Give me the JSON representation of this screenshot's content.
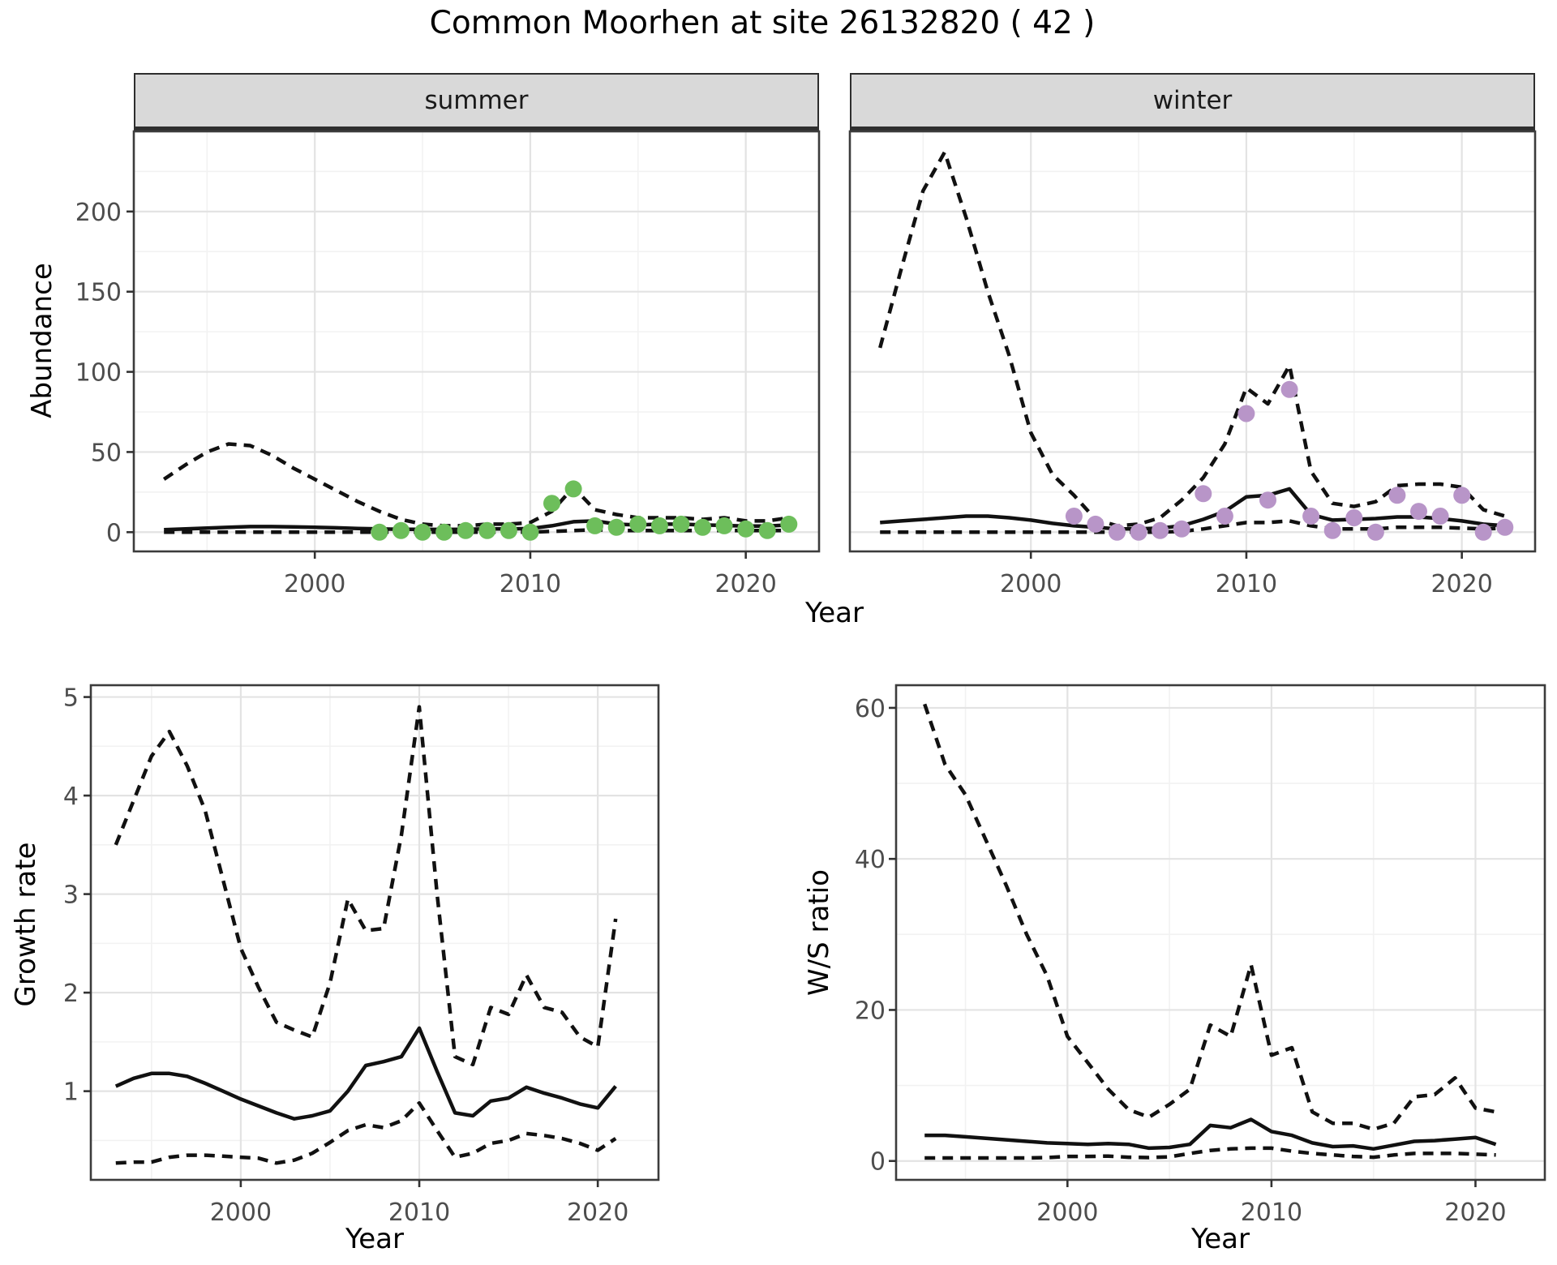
{
  "title": "Common Moorhen at site 26132820 ( 42 )",
  "styles": {
    "line_color": "#111111",
    "strip_fill": "#d9d9d9",
    "grid_major": "#e3e3e3",
    "grid_minor": "#f2f2f2",
    "panel_border": "#3c3c3c",
    "tick_color": "#333333",
    "summer_point_color": "#6dbe5b",
    "winter_point_color": "#b895c8"
  },
  "chart_data": [
    {
      "id": "abundance-summer",
      "type": "line",
      "facet": "summer",
      "xlabel": "Year",
      "ylabel": "Abundance",
      "x_ticks": [
        2000,
        2010,
        2020
      ],
      "y_ticks": [
        0,
        50,
        100,
        150,
        200
      ],
      "xlim": [
        1991.6,
        2023.4
      ],
      "ylim": [
        -12,
        250
      ],
      "grid": true,
      "legend": "none",
      "series": [
        {
          "name": "upper-95ci",
          "style": "dashed",
          "x": [
            1993,
            1994,
            1995,
            1996,
            1997,
            1998,
            1999,
            2000,
            2001,
            2002,
            2003,
            2004,
            2005,
            2006,
            2007,
            2008,
            2009,
            2010,
            2011,
            2012,
            2013,
            2014,
            2015,
            2016,
            2017,
            2018,
            2019,
            2020,
            2021,
            2022
          ],
          "y": [
            33,
            42,
            50,
            55,
            54,
            48,
            40,
            33,
            26,
            19,
            13,
            8,
            5,
            4,
            4,
            5,
            5,
            6,
            13,
            28,
            14,
            11,
            9,
            9,
            9,
            8,
            9,
            7,
            7,
            9
          ]
        },
        {
          "name": "modelled-mean",
          "style": "solid",
          "x": [
            1993,
            1994,
            1995,
            1996,
            1997,
            1998,
            1999,
            2000,
            2001,
            2002,
            2003,
            2004,
            2005,
            2006,
            2007,
            2008,
            2009,
            2010,
            2011,
            2012,
            2013,
            2014,
            2015,
            2016,
            2017,
            2018,
            2019,
            2020,
            2021,
            2022
          ],
          "y": [
            1.5,
            2,
            2.5,
            3,
            3.5,
            3.5,
            3.3,
            3,
            2.7,
            2.3,
            2,
            1.8,
            1.7,
            1.7,
            1.8,
            2,
            2,
            2.2,
            4,
            6.5,
            7,
            5,
            4.5,
            5,
            5,
            4.5,
            4.2,
            3.8,
            3.8,
            4.5
          ]
        },
        {
          "name": "lower-95ci",
          "style": "dashed",
          "x": [
            1993,
            1994,
            1995,
            1996,
            1997,
            1998,
            1999,
            2000,
            2001,
            2002,
            2003,
            2004,
            2005,
            2006,
            2007,
            2008,
            2009,
            2010,
            2011,
            2012,
            2013,
            2014,
            2015,
            2016,
            2017,
            2018,
            2019,
            2020,
            2021,
            2022
          ],
          "y": [
            0,
            0,
            0,
            0,
            0,
            0,
            0,
            0,
            0,
            0,
            0,
            0,
            0,
            0,
            0,
            0,
            0,
            0,
            0.5,
            1,
            1.5,
            1,
            1,
            1,
            1,
            1,
            1,
            1,
            1,
            1
          ]
        },
        {
          "name": "observed-counts",
          "style": "points",
          "color": "#6dbe5b",
          "x": [
            2003,
            2004,
            2005,
            2006,
            2007,
            2008,
            2009,
            2010,
            2011,
            2012,
            2013,
            2014,
            2015,
            2016,
            2017,
            2018,
            2019,
            2020,
            2021,
            2022
          ],
          "y": [
            0,
            1,
            0,
            0,
            1,
            1,
            1,
            0,
            18,
            27,
            4,
            3,
            5,
            4,
            5,
            3,
            4,
            2,
            1,
            5
          ]
        }
      ]
    },
    {
      "id": "abundance-winter",
      "type": "line",
      "facet": "winter",
      "xlabel": "Year",
      "ylabel": "Abundance",
      "x_ticks": [
        2000,
        2010,
        2020
      ],
      "y_ticks": [
        0,
        50,
        100,
        150,
        200
      ],
      "xlim": [
        1991.6,
        2023.4
      ],
      "ylim": [
        -12,
        250
      ],
      "grid": true,
      "legend": "none",
      "series": [
        {
          "name": "upper-95ci",
          "style": "dashed",
          "x": [
            1993,
            1994,
            1995,
            1996,
            1997,
            1998,
            1999,
            2000,
            2001,
            2002,
            2003,
            2004,
            2005,
            2006,
            2007,
            2008,
            2009,
            2010,
            2011,
            2012,
            2013,
            2014,
            2015,
            2016,
            2017,
            2018,
            2019,
            2020,
            2021,
            2022
          ],
          "y": [
            115,
            165,
            213,
            237,
            196,
            150,
            110,
            62,
            36,
            23,
            8,
            4,
            5,
            9,
            20,
            34,
            55,
            90,
            80,
            104,
            38,
            18,
            16,
            19,
            29,
            30,
            30,
            28,
            14,
            10
          ]
        },
        {
          "name": "modelled-mean",
          "style": "solid",
          "x": [
            1993,
            1994,
            1995,
            1996,
            1997,
            1998,
            1999,
            2000,
            2001,
            2002,
            2003,
            2004,
            2005,
            2006,
            2007,
            2008,
            2009,
            2010,
            2011,
            2012,
            2013,
            2014,
            2015,
            2016,
            2017,
            2018,
            2019,
            2020,
            2021,
            2022
          ],
          "y": [
            6,
            7,
            8,
            9,
            10,
            10,
            9,
            7.5,
            5.5,
            4,
            3,
            2,
            2,
            2.5,
            4,
            8,
            13,
            22,
            23,
            27,
            11,
            7.5,
            8,
            8.5,
            9.5,
            9.5,
            8.5,
            7,
            5,
            4
          ]
        },
        {
          "name": "lower-95ci",
          "style": "dashed",
          "x": [
            1993,
            1994,
            1995,
            1996,
            1997,
            1998,
            1999,
            2000,
            2001,
            2002,
            2003,
            2004,
            2005,
            2006,
            2007,
            2008,
            2009,
            2010,
            2011,
            2012,
            2013,
            2014,
            2015,
            2016,
            2017,
            2018,
            2019,
            2020,
            2021,
            2022
          ],
          "y": [
            0,
            0,
            0,
            0,
            0,
            0,
            0,
            0,
            0,
            0,
            0,
            0,
            0,
            0,
            0.5,
            2,
            4,
            6,
            6,
            7,
            4,
            2,
            2,
            2,
            3,
            3,
            3,
            2.5,
            2,
            2.5
          ]
        },
        {
          "name": "observed-counts",
          "style": "points",
          "color": "#b895c8",
          "x": [
            2002,
            2003,
            2004,
            2005,
            2006,
            2007,
            2008,
            2009,
            2010,
            2011,
            2012,
            2013,
            2014,
            2015,
            2016,
            2017,
            2018,
            2019,
            2020,
            2021,
            2022
          ],
          "y": [
            10,
            5,
            0,
            0,
            1,
            2,
            24,
            10,
            74,
            20,
            89,
            10,
            1,
            9,
            0,
            23,
            13,
            10,
            23,
            0,
            3
          ]
        }
      ]
    },
    {
      "id": "growth-rate",
      "type": "line",
      "facet": "",
      "xlabel": "Year",
      "ylabel": "Growth rate",
      "x_ticks": [
        2000,
        2010,
        2020
      ],
      "y_ticks": [
        1,
        2,
        3,
        4,
        5
      ],
      "xlim": [
        1991.6,
        2023.4
      ],
      "ylim": [
        0.1,
        5.12
      ],
      "grid": true,
      "legend": "none",
      "series": [
        {
          "name": "upper-95ci",
          "style": "dashed",
          "x": [
            1993,
            1994,
            1995,
            1996,
            1997,
            1998,
            1999,
            2000,
            2001,
            2002,
            2003,
            2004,
            2005,
            2006,
            2007,
            2008,
            2009,
            2010,
            2011,
            2012,
            2013,
            2014,
            2015,
            2016,
            2017,
            2018,
            2019,
            2020,
            2021
          ],
          "y": [
            3.5,
            3.95,
            4.4,
            4.65,
            4.3,
            3.85,
            3.15,
            2.45,
            2.05,
            1.7,
            1.62,
            1.55,
            2.1,
            2.95,
            2.63,
            2.65,
            3.6,
            4.9,
            3.0,
            1.35,
            1.27,
            1.85,
            1.78,
            2.18,
            1.85,
            1.8,
            1.55,
            1.45,
            2.75
          ]
        },
        {
          "name": "modelled-mean",
          "style": "solid",
          "x": [
            1993,
            1994,
            1995,
            1996,
            1997,
            1998,
            1999,
            2000,
            2001,
            2002,
            2003,
            2004,
            2005,
            2006,
            2007,
            2008,
            2009,
            2010,
            2011,
            2012,
            2013,
            2014,
            2015,
            2016,
            2017,
            2018,
            2019,
            2020,
            2021
          ],
          "y": [
            1.05,
            1.13,
            1.18,
            1.18,
            1.15,
            1.08,
            1.0,
            0.92,
            0.85,
            0.78,
            0.72,
            0.75,
            0.8,
            1.0,
            1.26,
            1.3,
            1.35,
            1.64,
            1.2,
            0.78,
            0.75,
            0.9,
            0.93,
            1.04,
            0.98,
            0.93,
            0.87,
            0.83,
            1.05
          ]
        },
        {
          "name": "lower-95ci",
          "style": "dashed",
          "x": [
            1993,
            1994,
            1995,
            1996,
            1997,
            1998,
            1999,
            2000,
            2001,
            2002,
            2003,
            2004,
            2005,
            2006,
            2007,
            2008,
            2009,
            2010,
            2011,
            2012,
            2013,
            2014,
            2015,
            2016,
            2017,
            2018,
            2019,
            2020,
            2021
          ],
          "y": [
            0.27,
            0.28,
            0.28,
            0.33,
            0.35,
            0.35,
            0.34,
            0.33,
            0.32,
            0.27,
            0.3,
            0.37,
            0.48,
            0.6,
            0.66,
            0.63,
            0.7,
            0.88,
            0.6,
            0.33,
            0.37,
            0.47,
            0.5,
            0.57,
            0.55,
            0.52,
            0.47,
            0.4,
            0.52
          ]
        }
      ]
    },
    {
      "id": "ws-ratio",
      "type": "line",
      "facet": "",
      "xlabel": "Year",
      "ylabel": "W/S ratio",
      "x_ticks": [
        2000,
        2010,
        2020
      ],
      "y_ticks": [
        0,
        20,
        40,
        60
      ],
      "xlim": [
        1991.6,
        2023.4
      ],
      "ylim": [
        -2.5,
        63
      ],
      "grid": true,
      "legend": "none",
      "series": [
        {
          "name": "upper-95ci",
          "style": "dashed",
          "x": [
            1993,
            1994,
            1995,
            1996,
            1997,
            1998,
            1999,
            2000,
            2001,
            2002,
            2003,
            2004,
            2005,
            2006,
            2007,
            2008,
            2009,
            2010,
            2011,
            2012,
            2013,
            2014,
            2015,
            2016,
            2017,
            2018,
            2019,
            2020,
            2021
          ],
          "y": [
            60.5,
            52.5,
            48.5,
            42.5,
            36.5,
            30,
            24.5,
            16.5,
            13,
            9.5,
            6.8,
            5.8,
            7.5,
            9.5,
            18,
            16.5,
            26,
            14,
            15,
            6.5,
            5,
            5,
            4.2,
            5,
            8.5,
            8.8,
            11,
            7,
            6.5
          ]
        },
        {
          "name": "modelled-mean",
          "style": "solid",
          "x": [
            1993,
            1994,
            1995,
            1996,
            1997,
            1998,
            1999,
            2000,
            2001,
            2002,
            2003,
            2004,
            2005,
            2006,
            2007,
            2008,
            2009,
            2010,
            2011,
            2012,
            2013,
            2014,
            2015,
            2016,
            2017,
            2018,
            2019,
            2020,
            2021
          ],
          "y": [
            3.4,
            3.4,
            3.2,
            3.0,
            2.8,
            2.6,
            2.4,
            2.3,
            2.2,
            2.3,
            2.2,
            1.7,
            1.8,
            2.2,
            4.7,
            4.4,
            5.5,
            3.9,
            3.4,
            2.4,
            1.9,
            2.0,
            1.6,
            2.1,
            2.6,
            2.7,
            2.9,
            3.1,
            2.2
          ]
        },
        {
          "name": "lower-95ci",
          "style": "dashed",
          "x": [
            1993,
            1994,
            1995,
            1996,
            1997,
            1998,
            1999,
            2000,
            2001,
            2002,
            2003,
            2004,
            2005,
            2006,
            2007,
            2008,
            2009,
            2010,
            2011,
            2012,
            2013,
            2014,
            2015,
            2016,
            2017,
            2018,
            2019,
            2020,
            2021
          ],
          "y": [
            0.4,
            0.4,
            0.4,
            0.4,
            0.4,
            0.4,
            0.45,
            0.6,
            0.6,
            0.65,
            0.5,
            0.45,
            0.55,
            1.0,
            1.4,
            1.6,
            1.7,
            1.7,
            1.3,
            1.0,
            0.8,
            0.6,
            0.5,
            0.8,
            1.0,
            1.0,
            1.0,
            0.9,
            0.8
          ]
        }
      ]
    }
  ]
}
